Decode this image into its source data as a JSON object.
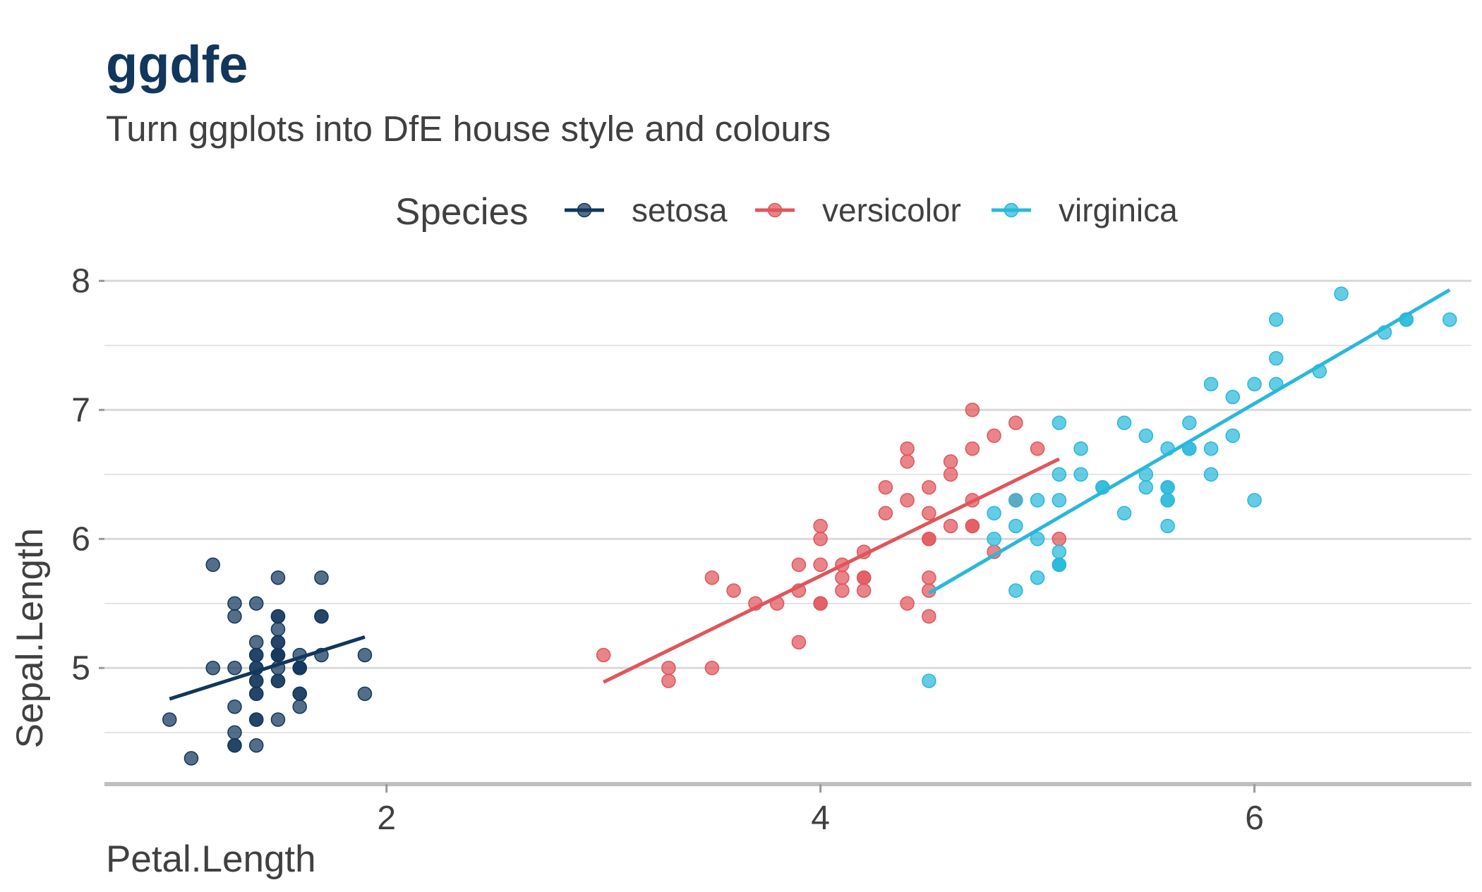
{
  "chart_data": {
    "type": "scatter",
    "title": "ggdfe",
    "subtitle": "Turn ggplots into DfE house style and colours",
    "xlabel": "Petal.Length",
    "ylabel": "Sepal.Length",
    "xlim": [
      0.7,
      7.0
    ],
    "ylim": [
      4.1,
      8.1
    ],
    "x_ticks": [
      2,
      4,
      6
    ],
    "y_ticks": [
      5,
      6,
      7,
      8
    ],
    "grid": {
      "major_y": true,
      "minor_y": true,
      "x": false
    },
    "legend": {
      "title": "Species",
      "position": "top",
      "entries": [
        "setosa",
        "versicolor",
        "virginica"
      ]
    },
    "colors": {
      "title": "#12365C",
      "text": "#404040",
      "grid": "#D9D9D9",
      "axis": "#BFBFBF"
    },
    "series": [
      {
        "name": "setosa",
        "color": "#12365C",
        "fit": [
          [
            1.0,
            4.76
          ],
          [
            1.9,
            5.24
          ]
        ],
        "points": [
          [
            1.4,
            5.1
          ],
          [
            1.4,
            4.9
          ],
          [
            1.3,
            4.7
          ],
          [
            1.5,
            4.6
          ],
          [
            1.4,
            5.0
          ],
          [
            1.7,
            5.4
          ],
          [
            1.4,
            4.6
          ],
          [
            1.5,
            5.0
          ],
          [
            1.4,
            4.4
          ],
          [
            1.5,
            4.9
          ],
          [
            1.5,
            5.4
          ],
          [
            1.6,
            4.8
          ],
          [
            1.4,
            4.8
          ],
          [
            1.1,
            4.3
          ],
          [
            1.2,
            5.8
          ],
          [
            1.5,
            5.7
          ],
          [
            1.3,
            5.4
          ],
          [
            1.4,
            5.1
          ],
          [
            1.7,
            5.7
          ],
          [
            1.5,
            5.1
          ],
          [
            1.7,
            5.4
          ],
          [
            1.5,
            5.1
          ],
          [
            1.0,
            4.6
          ],
          [
            1.7,
            5.1
          ],
          [
            1.9,
            4.8
          ],
          [
            1.6,
            5.0
          ],
          [
            1.6,
            5.0
          ],
          [
            1.5,
            5.2
          ],
          [
            1.4,
            5.2
          ],
          [
            1.6,
            4.7
          ],
          [
            1.6,
            4.8
          ],
          [
            1.5,
            5.4
          ],
          [
            1.5,
            5.2
          ],
          [
            1.4,
            5.5
          ],
          [
            1.5,
            4.9
          ],
          [
            1.2,
            5.0
          ],
          [
            1.3,
            5.5
          ],
          [
            1.4,
            4.9
          ],
          [
            1.3,
            4.4
          ],
          [
            1.5,
            5.1
          ],
          [
            1.3,
            5.0
          ],
          [
            1.3,
            4.5
          ],
          [
            1.3,
            4.4
          ],
          [
            1.6,
            5.0
          ],
          [
            1.9,
            5.1
          ],
          [
            1.4,
            4.8
          ],
          [
            1.6,
            5.1
          ],
          [
            1.4,
            4.6
          ],
          [
            1.5,
            5.3
          ],
          [
            1.4,
            5.0
          ]
        ]
      },
      {
        "name": "versicolor",
        "color": "#E0555B",
        "fit": [
          [
            3.0,
            4.89
          ],
          [
            5.1,
            6.62
          ]
        ],
        "points": [
          [
            4.7,
            7.0
          ],
          [
            4.5,
            6.4
          ],
          [
            4.9,
            6.9
          ],
          [
            4.0,
            5.5
          ],
          [
            4.6,
            6.5
          ],
          [
            4.5,
            5.7
          ],
          [
            4.7,
            6.3
          ],
          [
            3.3,
            4.9
          ],
          [
            4.6,
            6.6
          ],
          [
            3.9,
            5.2
          ],
          [
            3.5,
            5.0
          ],
          [
            4.2,
            5.9
          ],
          [
            4.0,
            6.0
          ],
          [
            4.7,
            6.1
          ],
          [
            3.6,
            5.6
          ],
          [
            4.4,
            6.7
          ],
          [
            4.5,
            5.6
          ],
          [
            4.1,
            5.8
          ],
          [
            4.5,
            6.2
          ],
          [
            3.9,
            5.6
          ],
          [
            4.8,
            5.9
          ],
          [
            4.0,
            6.1
          ],
          [
            4.9,
            6.3
          ],
          [
            4.7,
            6.1
          ],
          [
            4.3,
            6.4
          ],
          [
            4.4,
            6.6
          ],
          [
            4.8,
            6.8
          ],
          [
            5.0,
            6.7
          ],
          [
            4.5,
            6.0
          ],
          [
            3.5,
            5.7
          ],
          [
            3.8,
            5.5
          ],
          [
            3.7,
            5.5
          ],
          [
            3.9,
            5.8
          ],
          [
            5.1,
            6.0
          ],
          [
            4.5,
            5.4
          ],
          [
            4.5,
            6.0
          ],
          [
            4.7,
            6.7
          ],
          [
            4.4,
            6.3
          ],
          [
            4.1,
            5.6
          ],
          [
            4.0,
            5.5
          ],
          [
            4.4,
            5.5
          ],
          [
            4.6,
            6.1
          ],
          [
            4.0,
            5.8
          ],
          [
            3.3,
            5.0
          ],
          [
            4.2,
            5.6
          ],
          [
            4.2,
            5.7
          ],
          [
            4.2,
            5.7
          ],
          [
            4.3,
            6.2
          ],
          [
            3.0,
            5.1
          ],
          [
            4.1,
            5.7
          ]
        ]
      },
      {
        "name": "virginica",
        "color": "#28B8DA",
        "fit": [
          [
            4.5,
            5.58
          ],
          [
            6.9,
            7.93
          ]
        ],
        "points": [
          [
            6.0,
            6.3
          ],
          [
            5.1,
            5.8
          ],
          [
            5.9,
            7.1
          ],
          [
            5.6,
            6.3
          ],
          [
            5.8,
            6.5
          ],
          [
            6.6,
            7.6
          ],
          [
            4.5,
            4.9
          ],
          [
            6.3,
            7.3
          ],
          [
            5.8,
            6.7
          ],
          [
            6.1,
            7.2
          ],
          [
            5.1,
            6.5
          ],
          [
            5.3,
            6.4
          ],
          [
            5.5,
            6.8
          ],
          [
            5.0,
            5.7
          ],
          [
            5.1,
            5.8
          ],
          [
            5.3,
            6.4
          ],
          [
            5.5,
            6.5
          ],
          [
            6.7,
            7.7
          ],
          [
            6.9,
            7.7
          ],
          [
            5.0,
            6.0
          ],
          [
            5.7,
            6.9
          ],
          [
            4.9,
            5.6
          ],
          [
            6.7,
            7.7
          ],
          [
            4.9,
            6.3
          ],
          [
            5.7,
            6.7
          ],
          [
            6.0,
            7.2
          ],
          [
            4.8,
            6.2
          ],
          [
            4.9,
            6.1
          ],
          [
            5.6,
            6.4
          ],
          [
            5.8,
            7.2
          ],
          [
            6.1,
            7.4
          ],
          [
            6.4,
            7.9
          ],
          [
            5.6,
            6.4
          ],
          [
            5.1,
            6.3
          ],
          [
            5.6,
            6.1
          ],
          [
            6.1,
            7.7
          ],
          [
            5.6,
            6.3
          ],
          [
            5.5,
            6.4
          ],
          [
            4.8,
            6.0
          ],
          [
            5.4,
            6.9
          ],
          [
            5.6,
            6.7
          ],
          [
            5.1,
            6.9
          ],
          [
            5.1,
            5.8
          ],
          [
            5.9,
            6.8
          ],
          [
            5.7,
            6.7
          ],
          [
            5.2,
            6.7
          ],
          [
            5.0,
            6.3
          ],
          [
            5.2,
            6.5
          ],
          [
            5.4,
            6.2
          ],
          [
            5.1,
            5.9
          ]
        ]
      }
    ]
  }
}
